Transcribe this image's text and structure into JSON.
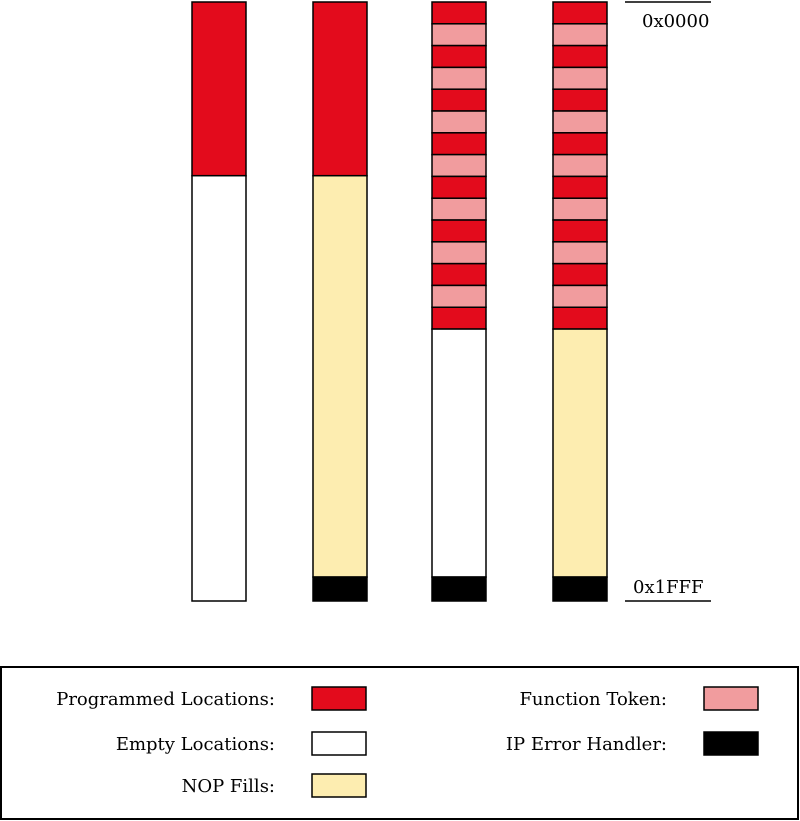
{
  "address_labels": {
    "start": "0x0000",
    "end": "0x1FFF"
  },
  "colors": {
    "programmed": "#e30b1c",
    "token": "#f19c9e",
    "empty": "#ffffff",
    "nop": "#fdedb0",
    "handler": "#000000"
  },
  "columns": [
    {
      "name": "column-1-programmed-empty",
      "segments": [
        {
          "kind": "programmed",
          "fraction": 0.29
        },
        {
          "kind": "empty",
          "fraction": 0.71
        }
      ]
    },
    {
      "name": "column-2-programmed-nop-handler",
      "segments": [
        {
          "kind": "programmed",
          "fraction": 0.29
        },
        {
          "kind": "nop",
          "fraction": 0.67
        },
        {
          "kind": "handler",
          "fraction": 0.04
        }
      ]
    },
    {
      "name": "column-3-tokenized-empty-handler",
      "segments": [
        {
          "kind": "programmed",
          "fraction": 0.0364
        },
        {
          "kind": "token",
          "fraction": 0.0364
        },
        {
          "kind": "programmed",
          "fraction": 0.0364
        },
        {
          "kind": "token",
          "fraction": 0.0364
        },
        {
          "kind": "programmed",
          "fraction": 0.0364
        },
        {
          "kind": "token",
          "fraction": 0.0364
        },
        {
          "kind": "programmed",
          "fraction": 0.0364
        },
        {
          "kind": "token",
          "fraction": 0.0364
        },
        {
          "kind": "programmed",
          "fraction": 0.0364
        },
        {
          "kind": "token",
          "fraction": 0.0364
        },
        {
          "kind": "programmed",
          "fraction": 0.0364
        },
        {
          "kind": "token",
          "fraction": 0.0364
        },
        {
          "kind": "programmed",
          "fraction": 0.0364
        },
        {
          "kind": "token",
          "fraction": 0.0364
        },
        {
          "kind": "programmed",
          "fraction": 0.0364
        },
        {
          "kind": "empty",
          "fraction": 0.414
        },
        {
          "kind": "handler",
          "fraction": 0.04
        }
      ]
    },
    {
      "name": "column-4-tokenized-nop-handler",
      "segments": [
        {
          "kind": "programmed",
          "fraction": 0.0364
        },
        {
          "kind": "token",
          "fraction": 0.0364
        },
        {
          "kind": "programmed",
          "fraction": 0.0364
        },
        {
          "kind": "token",
          "fraction": 0.0364
        },
        {
          "kind": "programmed",
          "fraction": 0.0364
        },
        {
          "kind": "token",
          "fraction": 0.0364
        },
        {
          "kind": "programmed",
          "fraction": 0.0364
        },
        {
          "kind": "token",
          "fraction": 0.0364
        },
        {
          "kind": "programmed",
          "fraction": 0.0364
        },
        {
          "kind": "token",
          "fraction": 0.0364
        },
        {
          "kind": "programmed",
          "fraction": 0.0364
        },
        {
          "kind": "token",
          "fraction": 0.0364
        },
        {
          "kind": "programmed",
          "fraction": 0.0364
        },
        {
          "kind": "token",
          "fraction": 0.0364
        },
        {
          "kind": "programmed",
          "fraction": 0.0364
        },
        {
          "kind": "nop",
          "fraction": 0.414
        },
        {
          "kind": "handler",
          "fraction": 0.04
        }
      ]
    }
  ],
  "legend": {
    "programmed": "Programmed Locations:",
    "empty": "Empty Locations:",
    "nop": "NOP Fills:",
    "token": "Function Token:",
    "handler": "IP Error Handler:"
  }
}
